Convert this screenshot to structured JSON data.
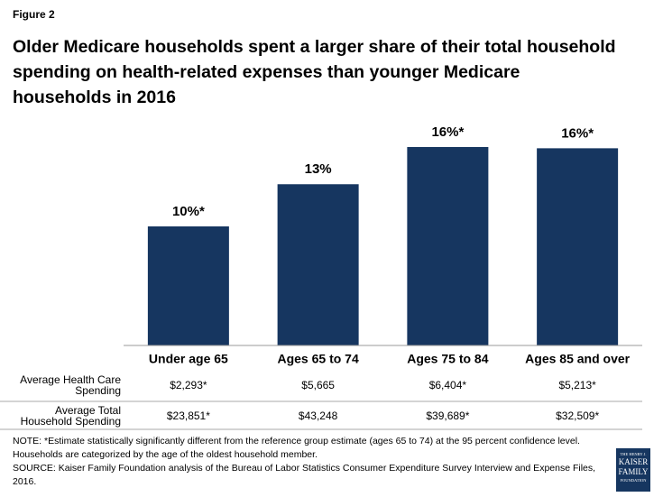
{
  "figure_label": "Figure 2",
  "chart_data": {
    "type": "bar",
    "title": "Older Medicare households spent a larger share of their total household spending on health-related expenses than younger Medicare households in 2016",
    "categories": [
      "Under age 65",
      "Ages 65 to 74",
      "Ages 75 to 84",
      "Ages 85 and over"
    ],
    "values": [
      9.6,
      13,
      16,
      15.9
    ],
    "value_labels": [
      "10%*",
      "13%",
      "16%*",
      "16%*"
    ],
    "color": "#163660",
    "table": {
      "rows": [
        {
          "label": [
            "Average Health Care",
            "Spending"
          ],
          "values": [
            "$2,293*",
            "$5,665",
            "$6,404*",
            "$5,213*"
          ]
        },
        {
          "label": [
            "Average Total",
            "Household Spending"
          ],
          "values": [
            "$23,851*",
            "$43,248",
            "$39,689*",
            "$32,509*"
          ]
        }
      ]
    }
  },
  "note": "NOTE: *Estimate statistically significantly different from the reference group estimate (ages 65 to 74) at the 95 percent confidence level. Households are categorized by the age of the oldest household member.",
  "source": "SOURCE: Kaiser Family Foundation analysis of the Bureau of Labor Statistics Consumer Expenditure Survey Interview and Expense Files, 2016.",
  "logo": [
    "THE HENRY J.",
    "KAISER",
    "FAMILY",
    "FOUNDATION"
  ]
}
